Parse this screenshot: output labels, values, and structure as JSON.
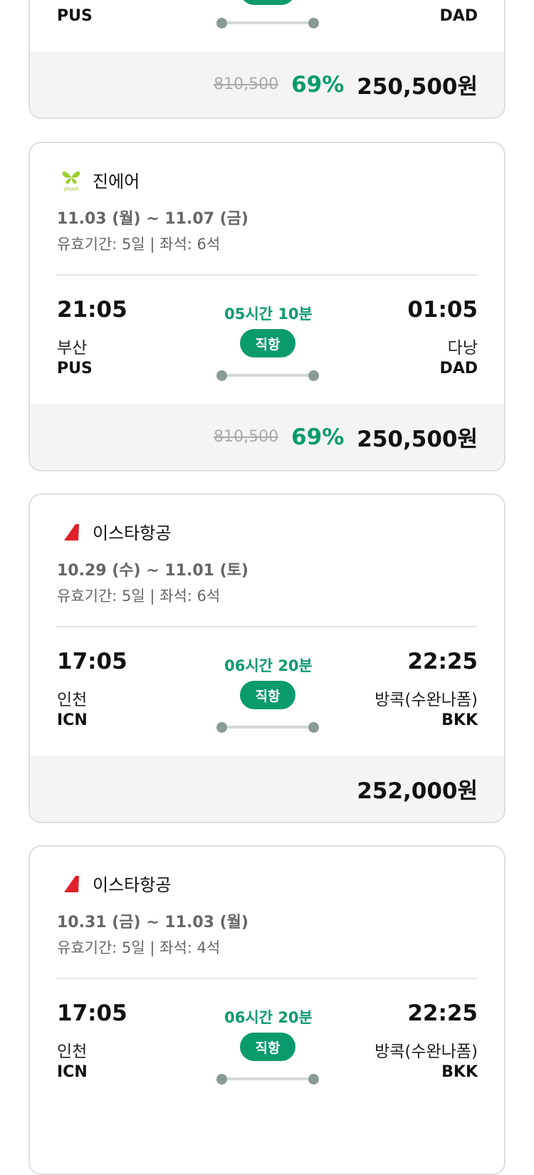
{
  "colors": {
    "accent": "#0a9b6d",
    "footer_bg": "#f4f4f4"
  },
  "cards": [
    {
      "origin_code": "PUS",
      "dest_code": "DAD",
      "original_price": "810,500",
      "discount": "69%",
      "price": "250,500원"
    },
    {
      "airline": "진에어",
      "logo": "jinair-butterfly-icon",
      "dates": "11.03 (월) ~ 11.07 (금)",
      "validity": "유효기간: 5일 | 좌석: 6석",
      "depart_time": "21:05",
      "arrive_time": "01:05",
      "duration": "05시간 10분",
      "flight_type": "직항",
      "origin_city": "부산",
      "origin_code": "PUS",
      "dest_city": "다낭",
      "dest_code": "DAD",
      "original_price": "810,500",
      "discount": "69%",
      "price": "250,500원"
    },
    {
      "airline": "이스타항공",
      "logo": "eastarjet-tail-icon",
      "dates": "10.29 (수) ~ 11.01 (토)",
      "validity": "유효기간: 5일 | 좌석: 6석",
      "depart_time": "17:05",
      "arrive_time": "22:25",
      "duration": "06시간 20분",
      "flight_type": "직항",
      "origin_city": "인천",
      "origin_code": "ICN",
      "dest_city": "방콕(수완나폼)",
      "dest_code": "BKK",
      "price": "252,000원"
    },
    {
      "airline": "이스타항공",
      "logo": "eastarjet-tail-icon",
      "dates": "10.31 (금) ~ 11.03 (월)",
      "validity": "유효기간: 5일 | 좌석: 4석",
      "depart_time": "17:05",
      "arrive_time": "22:25",
      "duration": "06시간 20분",
      "flight_type": "직항",
      "origin_city": "인천",
      "origin_code": "ICN",
      "dest_city": "방콕(수완나폼)",
      "dest_code": "BKK"
    }
  ]
}
